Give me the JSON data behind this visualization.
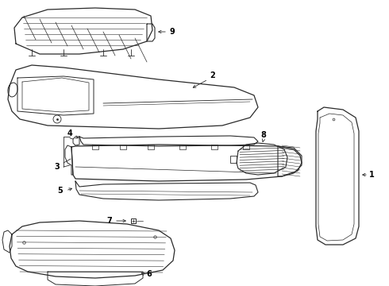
{
  "background_color": "#ffffff",
  "line_color": "#2a2a2a",
  "label_color": "#000000",
  "fig_width": 4.9,
  "fig_height": 3.6,
  "dpi": 100,
  "lw": 0.7
}
